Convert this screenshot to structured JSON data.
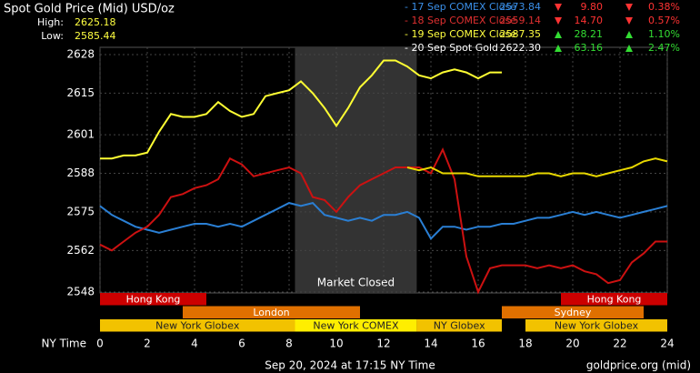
{
  "chart_data": {
    "type": "line",
    "title": "Spot Gold Price (Mid) USD/oz",
    "high_label": "High:",
    "high": "2625.18",
    "low_label": "Low:",
    "low": "2585.44",
    "x_label": "NY Time",
    "footer": "Sep 20, 2024 at 17:15 NY Time",
    "source": "goldprice.org (mid)",
    "xlim": [
      0,
      24
    ],
    "xticks": [
      0,
      2,
      4,
      6,
      8,
      10,
      12,
      14,
      16,
      18,
      20,
      22,
      24
    ],
    "ylim": [
      2548,
      2628
    ],
    "yticks": [
      2628,
      2615,
      2601,
      2588,
      2575,
      2562,
      2548
    ],
    "grid": true,
    "shaded": {
      "label": "Market Closed",
      "x": [
        8.25,
        13.4
      ]
    },
    "x": [
      0,
      0.5,
      1,
      1.5,
      2,
      2.5,
      3,
      3.5,
      4,
      4.5,
      5,
      5.5,
      6,
      6.5,
      7,
      7.5,
      8,
      8.5,
      9,
      9.5,
      10,
      10.5,
      11,
      11.5,
      12,
      12.5,
      13,
      13.5,
      14,
      14.5,
      15,
      15.5,
      16,
      16.5,
      17,
      17.5,
      18,
      18.5,
      19,
      19.5,
      20,
      20.5,
      21,
      21.5,
      22,
      22.5,
      23,
      23.5,
      24
    ],
    "series": [
      {
        "name": "- 17 Sep COMEX Close",
        "color": "#2a7fd4",
        "label_color": "#3a8fe8",
        "price": "2573.84",
        "change": "9.80",
        "pct": "0.38%",
        "direction": "down",
        "values": [
          2577,
          2574,
          2572,
          2570,
          2569,
          2568,
          2569,
          2570,
          2571,
          2571,
          2570,
          2571,
          2570,
          2572,
          2574,
          2576,
          2578,
          2577,
          2578,
          2574,
          2573,
          2572,
          2573,
          2572,
          2574,
          2574,
          2575,
          2573,
          2566,
          2570,
          2570,
          2569,
          2570,
          2570,
          2571,
          2571,
          2572,
          2573,
          2573,
          2574,
          2575,
          2574,
          2575,
          2574,
          2573,
          2574,
          2575,
          2576,
          2577
        ]
      },
      {
        "name": "- 18 Sep COMEX Close",
        "color": "#cc1111",
        "label_color": "#e03030",
        "price": "2559.14",
        "change": "14.70",
        "pct": "0.57%",
        "direction": "down",
        "values": [
          2564,
          2562,
          2565,
          2568,
          2570,
          2574,
          2580,
          2581,
          2583,
          2584,
          2586,
          2593,
          2591,
          2587,
          2588,
          2589,
          2590,
          2588,
          2580,
          2579,
          2575,
          2580,
          2584,
          2586,
          2588,
          2590,
          2590,
          2590,
          2588,
          2596,
          2586,
          2560,
          2548,
          2556,
          2557,
          2557,
          2557,
          2556,
          2557,
          2556,
          2557,
          2555,
          2554,
          2551,
          2552,
          2558,
          2561,
          2565,
          2565
        ]
      },
      {
        "name": "- 19 Sep COMEX Close",
        "color": "#e8d800",
        "label_color": "#ffff40",
        "price": "2587.35",
        "change": "28.21",
        "pct": "1.10%",
        "direction": "up",
        "values": [
          null,
          null,
          null,
          null,
          null,
          null,
          null,
          null,
          null,
          null,
          null,
          null,
          null,
          null,
          null,
          null,
          null,
          null,
          null,
          null,
          null,
          null,
          null,
          null,
          null,
          null,
          2590,
          2589,
          2590,
          2588,
          2588,
          2588,
          2587,
          2587,
          2587,
          2587,
          2587,
          2588,
          2588,
          2587,
          2588,
          2588,
          2587,
          2588,
          2589,
          2590,
          2592,
          2593,
          2592
        ]
      },
      {
        "name": "- 20 Sep Spot Gold",
        "color": "#ffff33",
        "label_color": "#ffffff",
        "price": "2622.30",
        "change": "63.16",
        "pct": "2.47%",
        "direction": "up",
        "values": [
          2593,
          2593,
          2594,
          2594,
          2595,
          2602,
          2608,
          2607,
          2607,
          2608,
          2612,
          2609,
          2607,
          2608,
          2614,
          2615,
          2616,
          2619,
          2615,
          2610,
          2604,
          2610,
          2617,
          2621,
          2626,
          2626,
          2624,
          2621,
          2620,
          2622,
          2623,
          2622,
          2620,
          2622,
          2622,
          null,
          null,
          null,
          null,
          null,
          null,
          null,
          null,
          null,
          null,
          null,
          null,
          null,
          null
        ]
      }
    ],
    "sessions": [
      {
        "label": "Hong Kong",
        "start": 0,
        "end": 4.5,
        "row": 0,
        "color": "#cc0000"
      },
      {
        "label": "Hong Kong",
        "start": 19.5,
        "end": 24,
        "row": 0,
        "color": "#cc0000"
      },
      {
        "label": "London",
        "start": 3.5,
        "end": 11,
        "row": 1,
        "color": "#e07000"
      },
      {
        "label": "Sydney",
        "start": 17,
        "end": 23,
        "row": 1,
        "color": "#e07000"
      },
      {
        "label": "New York Globex",
        "start": 0,
        "end": 8.25,
        "row": 2,
        "color": "#f2c200"
      },
      {
        "label": "New York COMEX",
        "start": 8.25,
        "end": 13.4,
        "row": 2,
        "color": "#ffee00"
      },
      {
        "label": "NY Globex",
        "start": 13.4,
        "end": 17,
        "row": 2,
        "color": "#f2c200"
      },
      {
        "label": "New York Globex",
        "start": 18,
        "end": 24,
        "row": 2,
        "color": "#f2c200"
      }
    ]
  }
}
